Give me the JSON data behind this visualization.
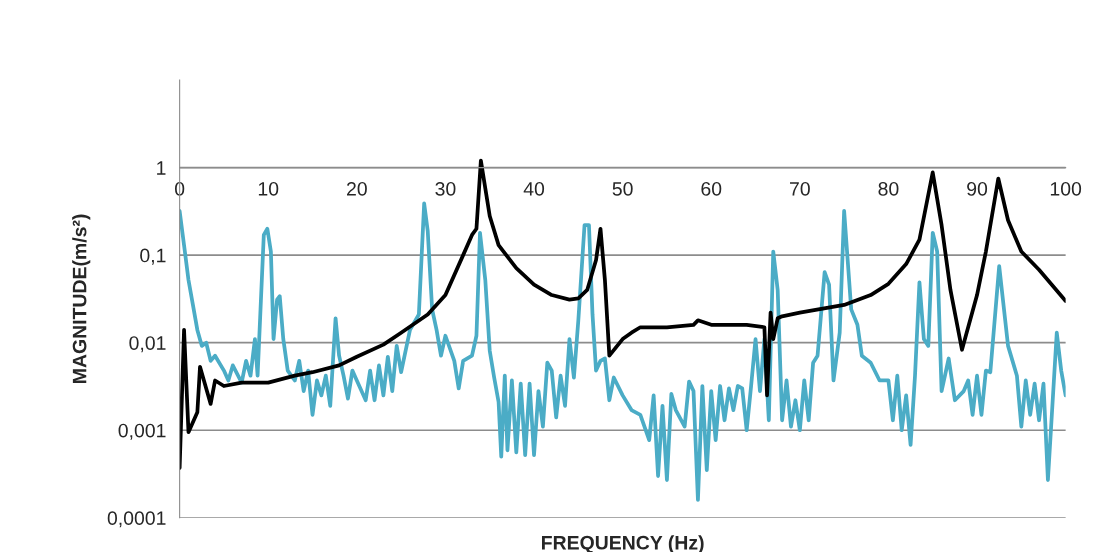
{
  "chart_data": {
    "type": "line",
    "xlabel": "FREQUENCY (Hz)",
    "ylabel": "MAGNITUDE(m/s²)",
    "xlim": [
      0,
      100
    ],
    "xticks": [
      0,
      10,
      20,
      30,
      40,
      50,
      60,
      70,
      80,
      90,
      100
    ],
    "ylim": [
      0.0001,
      10
    ],
    "yticks": [
      {
        "value": 0.0001,
        "label": "0,0001"
      },
      {
        "value": 0.001,
        "label": "0,001"
      },
      {
        "value": 0.01,
        "label": "0,01"
      },
      {
        "value": 0.1,
        "label": "0,1"
      },
      {
        "value": 1,
        "label": "1"
      }
    ],
    "log": "y",
    "grid": "y",
    "series": [
      {
        "color": "#4bacc6",
        "x": [
          0,
          0.5,
          1,
          1.5,
          2,
          2.5,
          3,
          3.5,
          4,
          5,
          5.5,
          6,
          7,
          7.5,
          8,
          8.5,
          8.8,
          9.5,
          9.9,
          10.3,
          10.6,
          11,
          11.3,
          11.7,
          12.2,
          13,
          13.5,
          14,
          14.5,
          15,
          15.5,
          16,
          16.5,
          17,
          17.6,
          18,
          18.5,
          19,
          19.5,
          20,
          21,
          21.5,
          22,
          22.5,
          23,
          23.5,
          24,
          24.5,
          25,
          26,
          27,
          27.6,
          28,
          28.5,
          29,
          29.5,
          30,
          31,
          31.5,
          32,
          33,
          33.5,
          33.9,
          34.5,
          35,
          35.5,
          36,
          36.3,
          36.7,
          37,
          37.5,
          38,
          38.5,
          39,
          39.5,
          40,
          40.5,
          41,
          41.5,
          42,
          42.5,
          43,
          43.5,
          44,
          44.5,
          45,
          45.7,
          46.2,
          46.6,
          47,
          47.5,
          48,
          48.5,
          49,
          50,
          51,
          52,
          53,
          53.5,
          54,
          54.5,
          55,
          55.5,
          56,
          57,
          57.5,
          58,
          58.5,
          59,
          59.5,
          60,
          60.5,
          61,
          61.5,
          62,
          62.5,
          63,
          63.5,
          64,
          64.5,
          65,
          65.5,
          66,
          66.5,
          67,
          67.5,
          68,
          68.5,
          69,
          69.5,
          70,
          70.5,
          71,
          71.5,
          72,
          72.8,
          73.3,
          73.8,
          74.5,
          75,
          75.8,
          76.5,
          77,
          78,
          79,
          80,
          80.5,
          81,
          81.5,
          82,
          82.5,
          83,
          83.5,
          84,
          84.5,
          85,
          85.5,
          86,
          86.8,
          87.5,
          88.5,
          89,
          89.5,
          90,
          90.5,
          91,
          91.5,
          92.5,
          93.5,
          94.5,
          95,
          95.5,
          96,
          96.5,
          97,
          97.5,
          98,
          99,
          99.5,
          100
        ],
        "values": [
          0.32,
          0.13,
          0.052,
          0.027,
          0.014,
          0.0092,
          0.01,
          0.0062,
          0.0071,
          0.0048,
          0.0037,
          0.0055,
          0.0035,
          0.0062,
          0.0042,
          0.011,
          0.0042,
          0.17,
          0.2,
          0.11,
          0.011,
          0.031,
          0.034,
          0.011,
          0.0048,
          0.0037,
          0.0062,
          0.0028,
          0.0048,
          0.0015,
          0.0037,
          0.0025,
          0.0042,
          0.0019,
          0.019,
          0.0071,
          0.0042,
          0.0023,
          0.0048,
          0.0037,
          0.0022,
          0.0048,
          0.0022,
          0.0055,
          0.0025,
          0.0069,
          0.0028,
          0.0092,
          0.0046,
          0.014,
          0.021,
          0.39,
          0.19,
          0.024,
          0.014,
          0.0071,
          0.012,
          0.0062,
          0.003,
          0.0062,
          0.0071,
          0.012,
          0.18,
          0.052,
          0.0081,
          0.004,
          0.0021,
          0.0005,
          0.0042,
          0.00059,
          0.0037,
          0.00056,
          0.0034,
          0.00052,
          0.0034,
          0.00052,
          0.0028,
          0.0011,
          0.0059,
          0.0048,
          0.0014,
          0.0042,
          0.0019,
          0.011,
          0.004,
          0.018,
          0.22,
          0.22,
          0.021,
          0.0048,
          0.0062,
          0.0066,
          0.0022,
          0.004,
          0.0025,
          0.0017,
          0.0015,
          0.00077,
          0.0025,
          0.0003,
          0.0019,
          0.00027,
          0.0026,
          0.0017,
          0.0011,
          0.0036,
          0.0028,
          0.00016,
          0.0032,
          0.00035,
          0.0028,
          0.00077,
          0.0032,
          0.0013,
          0.003,
          0.0017,
          0.0032,
          0.003,
          0.001,
          0.0032,
          0.011,
          0.0028,
          0.011,
          0.0013,
          0.11,
          0.04,
          0.0013,
          0.0037,
          0.0011,
          0.0022,
          0.001,
          0.0037,
          0.0013,
          0.0059,
          0.0071,
          0.064,
          0.046,
          0.0037,
          0.013,
          0.32,
          0.024,
          0.016,
          0.0071,
          0.0059,
          0.0037,
          0.0037,
          0.0013,
          0.0042,
          0.001,
          0.0025,
          0.00068,
          0.0042,
          0.049,
          0.011,
          0.0092,
          0.18,
          0.11,
          0.0028,
          0.0066,
          0.0022,
          0.0028,
          0.0037,
          0.0015,
          0.0042,
          0.0015,
          0.0048,
          0.0046,
          0.075,
          0.0092,
          0.0042,
          0.0011,
          0.0037,
          0.0015,
          0.0034,
          0.0013,
          0.0034,
          0.00027,
          0.013,
          0.0048,
          0.0025
        ]
      },
      {
        "color": "#000000",
        "x": [
          0,
          0.5,
          1,
          2,
          2.3,
          3,
          3.5,
          4,
          5,
          7,
          10,
          13,
          15,
          18,
          20,
          23,
          25,
          28,
          30,
          32,
          33,
          33.5,
          34,
          35,
          36,
          38,
          40,
          42,
          44,
          45,
          46,
          47,
          47.5,
          48,
          48.5,
          50,
          51,
          52,
          55,
          58,
          58.5,
          60,
          64,
          66,
          66.3,
          66.7,
          67,
          67.5,
          68,
          70,
          75,
          78,
          80,
          82,
          83.5,
          85,
          86,
          87,
          88.3,
          90,
          91,
          92.4,
          93.5,
          95,
          97,
          100
        ],
        "values": [
          0.00037,
          0.014,
          0.00095,
          0.0016,
          0.0053,
          0.003,
          0.002,
          0.0037,
          0.0032,
          0.0035,
          0.0035,
          0.0042,
          0.0046,
          0.0055,
          0.0069,
          0.0095,
          0.013,
          0.021,
          0.035,
          0.1,
          0.17,
          0.2,
          1.2,
          0.28,
          0.13,
          0.071,
          0.046,
          0.035,
          0.031,
          0.032,
          0.04,
          0.088,
          0.2,
          0.052,
          0.0071,
          0.011,
          0.013,
          0.015,
          0.015,
          0.016,
          0.018,
          0.016,
          0.016,
          0.015,
          0.0025,
          0.022,
          0.011,
          0.019,
          0.02,
          0.022,
          0.027,
          0.035,
          0.047,
          0.079,
          0.15,
          0.88,
          0.22,
          0.04,
          0.0083,
          0.035,
          0.11,
          0.75,
          0.25,
          0.11,
          0.068,
          0.03
        ]
      }
    ]
  }
}
